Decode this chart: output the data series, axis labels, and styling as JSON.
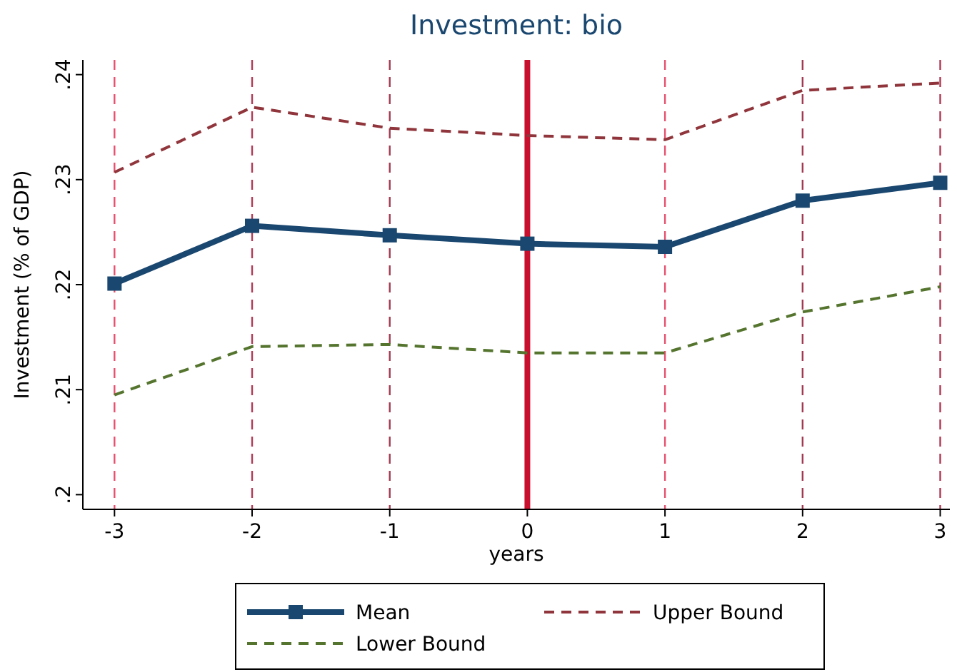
{
  "chart_data": {
    "type": "line",
    "title": "Investment: bio",
    "xlabel": "years",
    "ylabel": "Investment (% of GDP)",
    "x": [
      -3,
      -2,
      -1,
      0,
      1,
      2,
      3
    ],
    "series": [
      {
        "name": "Mean",
        "color": "#1a476f",
        "values": [
          0.2201,
          0.2256,
          0.2247,
          0.2239,
          0.2236,
          0.228,
          0.2297
        ],
        "marker": "square",
        "line_style": "solid"
      },
      {
        "name": "Upper Bound",
        "color": "#90353b",
        "values": [
          0.2307,
          0.2369,
          0.2349,
          0.2342,
          0.2338,
          0.2385,
          0.2392
        ],
        "marker": "none",
        "line_style": "dashed"
      },
      {
        "name": "Lower Bound",
        "color": "#55752f",
        "values": [
          0.2095,
          0.2141,
          0.2143,
          0.2135,
          0.2135,
          0.2174,
          0.2198
        ],
        "marker": "none",
        "line_style": "dashed"
      }
    ],
    "xlim": [
      -3.23,
      3.07
    ],
    "xticks": [
      -3,
      -2,
      -1,
      0,
      1,
      2,
      3
    ],
    "ylim": [
      0.1986,
      0.2414
    ],
    "yticks": [
      {
        "value": 0.2,
        "label": ".2"
      },
      {
        "value": 0.21,
        "label": ".21"
      },
      {
        "value": 0.22,
        "label": ".22"
      },
      {
        "value": 0.23,
        "label": ".23"
      },
      {
        "value": 0.24,
        "label": ".24"
      }
    ],
    "ref_lines": [
      {
        "axis": "x",
        "value": -3,
        "color": "#e8506e",
        "line_style": "dashed"
      },
      {
        "axis": "x",
        "value": -2,
        "color": "#b03a55",
        "line_style": "dashed"
      },
      {
        "axis": "x",
        "value": -1,
        "color": "#a03a50",
        "line_style": "dashed"
      },
      {
        "axis": "x",
        "value": 0,
        "color": "#c8102e",
        "line_style": "solid"
      },
      {
        "axis": "x",
        "value": 1,
        "color": "#e8506e",
        "line_style": "dashed"
      },
      {
        "axis": "x",
        "value": 2,
        "color": "#a03a50",
        "line_style": "dashed"
      },
      {
        "axis": "x",
        "value": 3,
        "color": "#b03a55",
        "line_style": "dashed"
      }
    ],
    "grid": false,
    "legend": "bottom"
  }
}
